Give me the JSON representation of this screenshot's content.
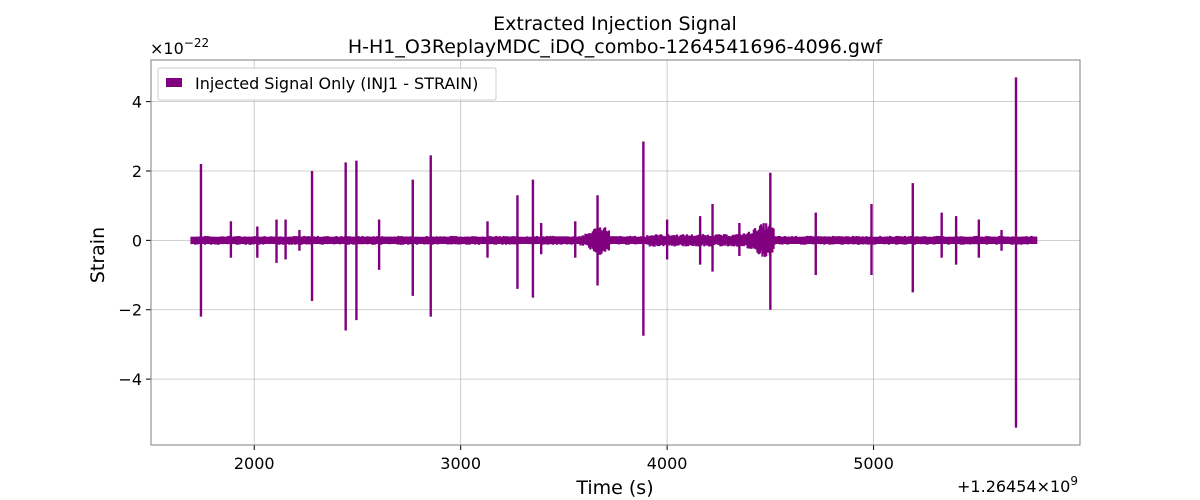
{
  "chart_data": {
    "type": "line",
    "title": "Extracted Injection Signal",
    "subtitle": "H-H1_O3ReplayMDC_iDQ_combo-1264541696-4096.gwf",
    "xlabel": "Time (s)",
    "ylabel": "Strain",
    "x_offset_label": "+1.26454×10",
    "x_offset_exp": "9",
    "y_scale_label": "×10",
    "y_scale_exp": "−22",
    "xlim": [
      1500,
      6000
    ],
    "ylim": [
      -5.9,
      5.2
    ],
    "x_ticks": [
      2000,
      3000,
      4000,
      5000
    ],
    "y_ticks": [
      4,
      2,
      0,
      -2,
      -4
    ],
    "y_tick_labels": [
      "4",
      "2",
      "0",
      "−2",
      "−4"
    ],
    "grid": true,
    "legend_position": "top-left",
    "series": [
      {
        "name": "Injected Signal Only (INJ1 - STRAIN)",
        "color": "#800080",
        "x_range": [
          1696,
          5792
        ],
        "baseline_amplitude": 0.13,
        "peaks": [
          {
            "x": 1742,
            "max": 2.2,
            "min": -2.2
          },
          {
            "x": 1887,
            "max": 0.55,
            "min": -0.5
          },
          {
            "x": 2015,
            "max": 0.4,
            "min": -0.5
          },
          {
            "x": 2108,
            "max": 0.6,
            "min": -0.65
          },
          {
            "x": 2152,
            "max": 0.6,
            "min": -0.55
          },
          {
            "x": 2219,
            "max": 0.3,
            "min": -0.3
          },
          {
            "x": 2280,
            "max": 2.0,
            "min": -1.75
          },
          {
            "x": 2443,
            "max": 2.25,
            "min": -2.6
          },
          {
            "x": 2495,
            "max": 2.3,
            "min": -2.3
          },
          {
            "x": 2605,
            "max": 0.6,
            "min": -0.85
          },
          {
            "x": 2768,
            "max": 1.75,
            "min": -1.6
          },
          {
            "x": 2855,
            "max": 2.45,
            "min": -2.2
          },
          {
            "x": 3130,
            "max": 0.55,
            "min": -0.5
          },
          {
            "x": 3275,
            "max": 1.3,
            "min": -1.4
          },
          {
            "x": 3350,
            "max": 1.75,
            "min": -1.65
          },
          {
            "x": 3390,
            "max": 0.5,
            "min": -0.4
          },
          {
            "x": 3555,
            "max": 0.55,
            "min": -0.5
          },
          {
            "x": 3663,
            "max": 1.3,
            "min": -1.3
          },
          {
            "x": 3885,
            "max": 2.85,
            "min": -2.75
          },
          {
            "x": 4000,
            "max": 0.6,
            "min": -0.55
          },
          {
            "x": 4160,
            "max": 0.7,
            "min": -0.7
          },
          {
            "x": 4220,
            "max": 1.05,
            "min": -0.9
          },
          {
            "x": 4350,
            "max": 0.5,
            "min": -0.45
          },
          {
            "x": 4500,
            "max": 1.95,
            "min": -2.0
          },
          {
            "x": 4720,
            "max": 0.8,
            "min": -1.0
          },
          {
            "x": 4990,
            "max": 1.05,
            "min": -1.0
          },
          {
            "x": 5190,
            "max": 1.65,
            "min": -1.5
          },
          {
            "x": 5330,
            "max": 0.8,
            "min": -0.5
          },
          {
            "x": 5400,
            "max": 0.7,
            "min": -0.7
          },
          {
            "x": 5510,
            "max": 0.6,
            "min": -0.5
          },
          {
            "x": 5620,
            "max": 0.3,
            "min": -0.3
          },
          {
            "x": 5690,
            "max": 4.7,
            "min": -5.4
          }
        ]
      }
    ]
  }
}
